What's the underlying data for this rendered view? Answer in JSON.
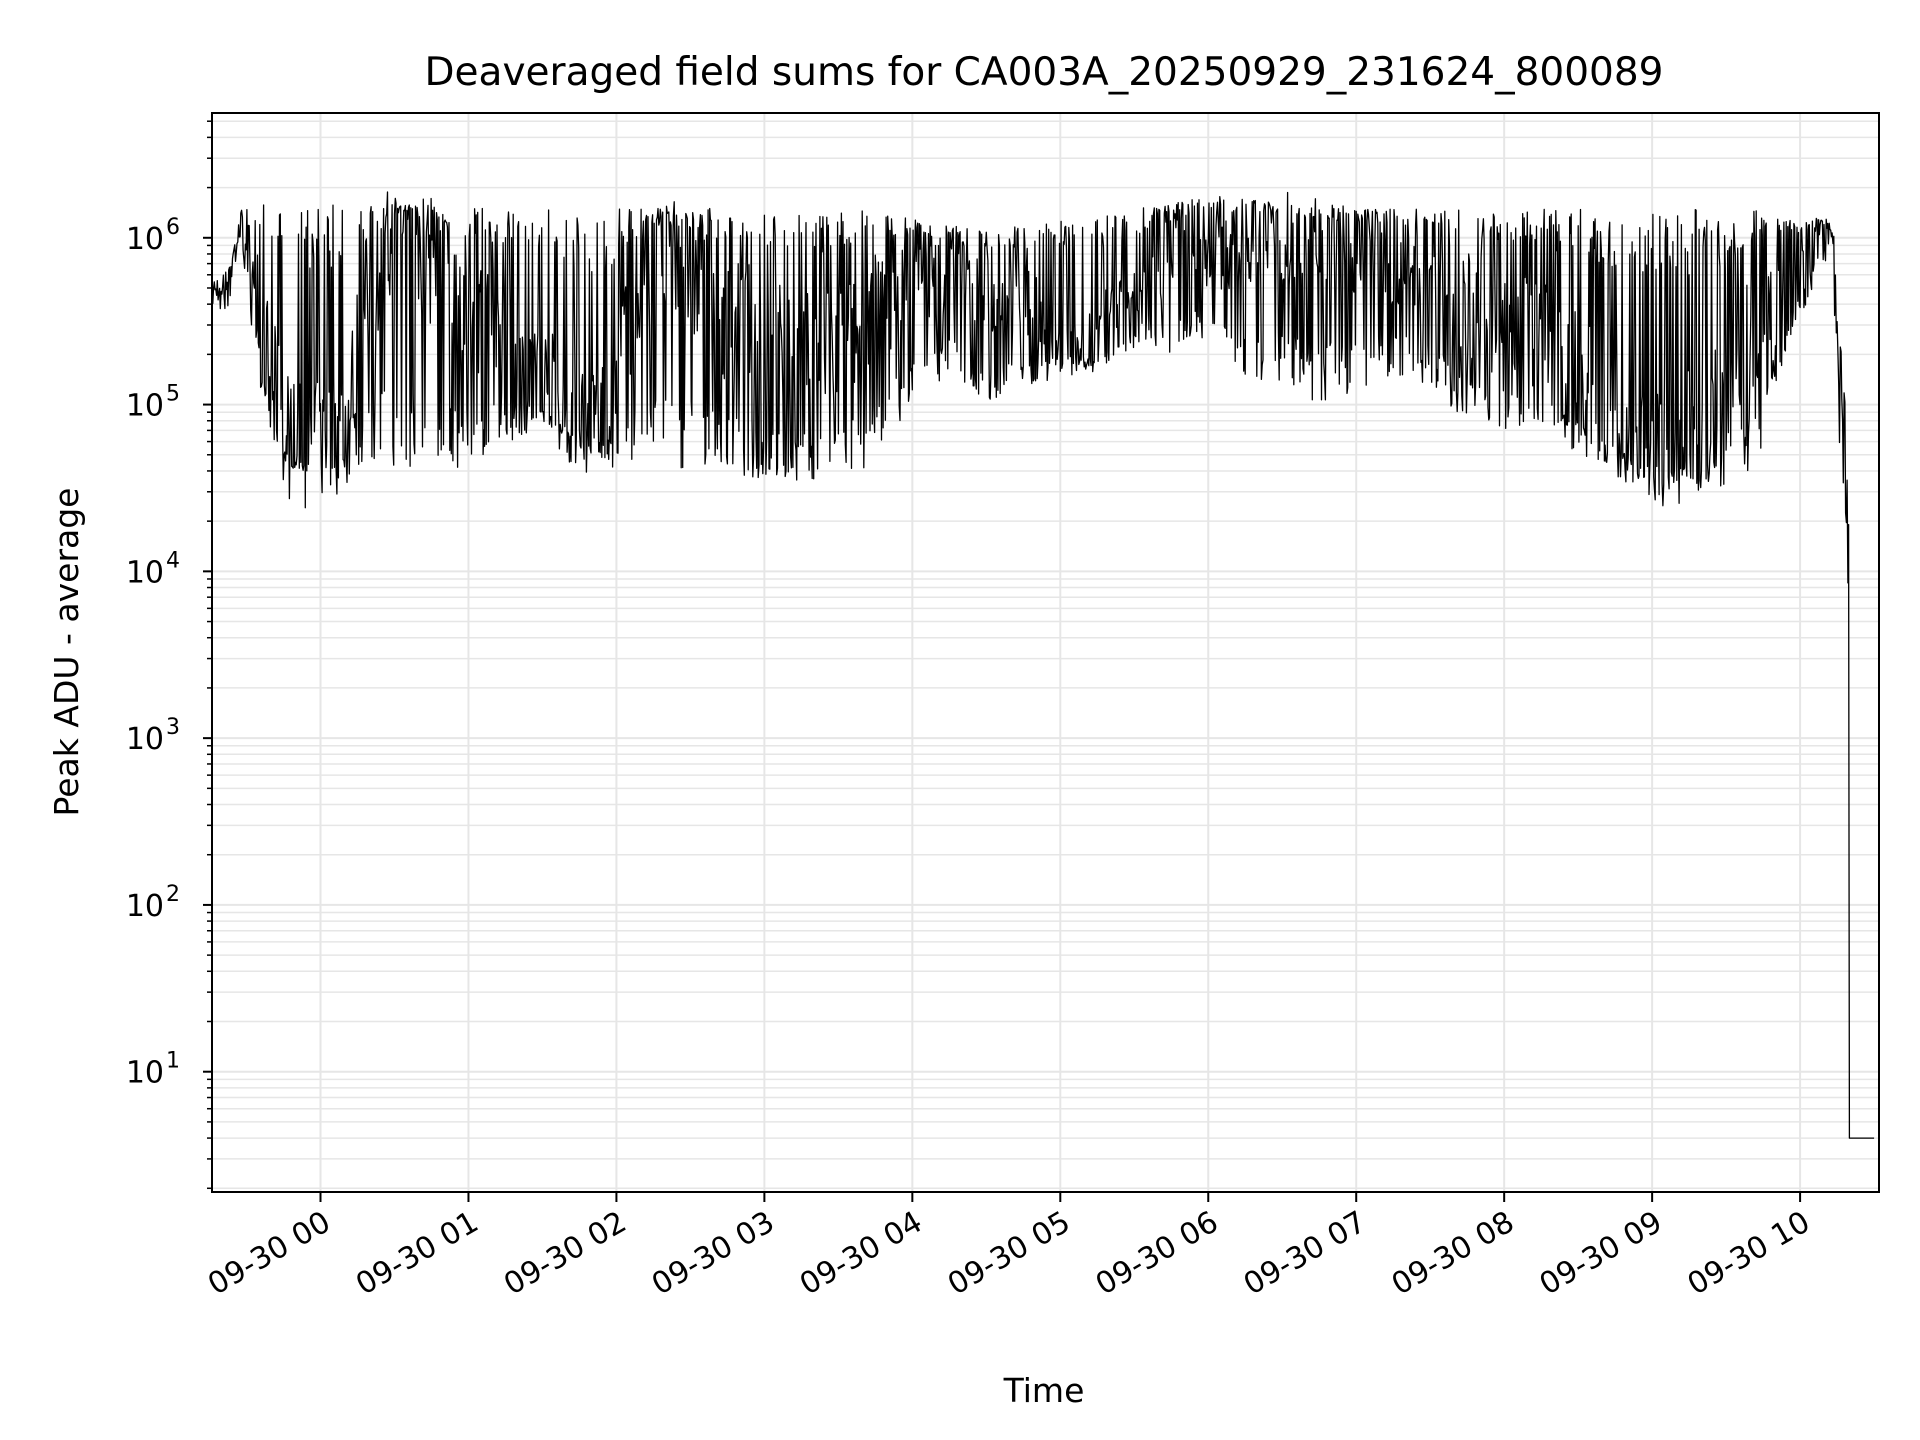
{
  "chart_data": {
    "type": "line",
    "title": "Deaveraged field sums for CA003A_20250929_231624_800089",
    "xlabel": "Time",
    "ylabel": "Peak ADU - average",
    "yscale": "log",
    "ylim": [
      1.9,
      5600000
    ],
    "xlim": [
      "2025-09-29 23:16",
      "2025-09-30 10:32"
    ],
    "grid": true,
    "grid_minor": true,
    "colors": {
      "line": "#000000",
      "grid": "#e6e6e6",
      "axes": "#000000"
    },
    "x_ticks": [
      {
        "value": "2025-09-30 00:00",
        "label": "09-30 00"
      },
      {
        "value": "2025-09-30 01:00",
        "label": "09-30 01"
      },
      {
        "value": "2025-09-30 02:00",
        "label": "09-30 02"
      },
      {
        "value": "2025-09-30 03:00",
        "label": "09-30 03"
      },
      {
        "value": "2025-09-30 04:00",
        "label": "09-30 04"
      },
      {
        "value": "2025-09-30 05:00",
        "label": "09-30 05"
      },
      {
        "value": "2025-09-30 06:00",
        "label": "09-30 06"
      },
      {
        "value": "2025-09-30 07:00",
        "label": "09-30 07"
      },
      {
        "value": "2025-09-30 08:00",
        "label": "09-30 08"
      },
      {
        "value": "2025-09-30 09:00",
        "label": "09-30 09"
      },
      {
        "value": "2025-09-30 10:00",
        "label": "09-30 10"
      }
    ],
    "y_ticks": [
      {
        "value": 10,
        "base": "10",
        "exp": "1"
      },
      {
        "value": 100,
        "base": "10",
        "exp": "2"
      },
      {
        "value": 1000,
        "base": "10",
        "exp": "3"
      },
      {
        "value": 10000,
        "base": "10",
        "exp": "4"
      },
      {
        "value": 100000,
        "base": "10",
        "exp": "5"
      },
      {
        "value": 1000000,
        "base": "10",
        "exp": "6"
      }
    ],
    "series": [
      {
        "x": [
          "2025-09-29 23:16",
          "2025-09-29 23:20",
          "2025-09-29 23:24",
          "2025-09-29 23:28",
          "2025-09-29 23:32",
          "2025-09-29 23:36",
          "2025-09-29 23:40",
          "2025-09-29 23:44",
          "2025-09-29 23:48",
          "2025-09-29 23:52",
          "2025-09-29 23:56",
          "2025-09-30 00:00",
          "2025-09-30 00:06",
          "2025-09-30 00:12",
          "2025-09-30 00:18",
          "2025-09-30 00:24",
          "2025-09-30 00:30",
          "2025-09-30 00:36",
          "2025-09-30 00:42",
          "2025-09-30 00:48",
          "2025-09-30 00:54",
          "2025-09-30 01:00",
          "2025-09-30 01:10",
          "2025-09-30 01:20",
          "2025-09-30 01:30",
          "2025-09-30 01:40",
          "2025-09-30 01:50",
          "2025-09-30 02:00",
          "2025-09-30 02:10",
          "2025-09-30 02:20",
          "2025-09-30 02:30",
          "2025-09-30 02:40",
          "2025-09-30 02:50",
          "2025-09-30 03:00",
          "2025-09-30 03:10",
          "2025-09-30 03:20",
          "2025-09-30 03:30",
          "2025-09-30 03:40",
          "2025-09-30 03:50",
          "2025-09-30 04:00",
          "2025-09-30 04:15",
          "2025-09-30 04:30",
          "2025-09-30 04:45",
          "2025-09-30 05:00",
          "2025-09-30 05:15",
          "2025-09-30 05:30",
          "2025-09-30 05:45",
          "2025-09-30 06:00",
          "2025-09-30 06:15",
          "2025-09-30 06:30",
          "2025-09-30 06:45",
          "2025-09-30 07:00",
          "2025-09-30 07:15",
          "2025-09-30 07:30",
          "2025-09-30 07:45",
          "2025-09-30 08:00",
          "2025-09-30 08:15",
          "2025-09-30 08:30",
          "2025-09-30 08:45",
          "2025-09-30 09:00",
          "2025-09-30 09:15",
          "2025-09-30 09:30",
          "2025-09-30 09:45",
          "2025-09-30 10:00",
          "2025-09-30 10:05",
          "2025-09-30 10:10",
          "2025-09-30 10:13",
          "2025-09-30 10:15",
          "2025-09-30 10:16",
          "2025-09-30 10:20",
          "2025-09-30 10:25",
          "2025-09-30 10:30"
        ],
        "y": [
          500000,
          450000,
          520000,
          1200000,
          800000,
          300000,
          150000,
          90000,
          60000,
          55000,
          50000,
          60000,
          70000,
          80000,
          400000,
          700000,
          900000,
          1000000,
          800000,
          600000,
          500000,
          400000,
          300000,
          200000,
          150000,
          100000,
          80000,
          120000,
          500000,
          700000,
          600000,
          400000,
          300000,
          250000,
          200000,
          180000,
          200000,
          300000,
          400000,
          500000,
          600000,
          500000,
          400000,
          300000,
          250000,
          400000,
          700000,
          800000,
          900000,
          1000000,
          900000,
          800000,
          700000,
          600000,
          400000,
          300000,
          250000,
          150000,
          90000,
          60000,
          70000,
          90000,
          400000,
          800000,
          1100000,
          1200000,
          900000,
          400000,
          100000,
          4,
          4,
          4
        ],
        "y_low": [
          400000,
          350000,
          400000,
          800000,
          300000,
          100000,
          60000,
          45000,
          42000,
          40000,
          40000,
          42000,
          40000,
          40000,
          45000,
          45000,
          42000,
          40000,
          38000,
          38000,
          40000,
          42000,
          50000,
          60000,
          80000,
          60000,
          50000,
          40000,
          40000,
          38000,
          35000,
          35000,
          38000,
          35000,
          35000,
          35000,
          38000,
          40000,
          60000,
          100000,
          150000,
          100000,
          120000,
          150000,
          150000,
          200000,
          200000,
          250000,
          150000,
          120000,
          100000,
          120000,
          150000,
          120000,
          80000,
          70000,
          65000,
          50000,
          40000,
          32000,
          30000,
          32000,
          40000,
          300000,
          500000,
          700000,
          400000,
          150000,
          50000,
          4,
          4,
          4
        ],
        "y_high": [
          550000,
          600000,
          700000,
          1500000,
          1700000,
          1600000,
          1600000,
          1600000,
          1600000,
          1600000,
          1600000,
          1600000,
          1600000,
          1600000,
          1600000,
          1600000,
          1600000,
          1600000,
          1600000,
          1500000,
          1500000,
          1500000,
          1500000,
          1400000,
          1500000,
          1500000,
          1400000,
          1500000,
          1500000,
          1500000,
          1500000,
          1500000,
          1500000,
          1500000,
          1500000,
          1500000,
          1500000,
          1500000,
          1400000,
          1300000,
          1200000,
          1100000,
          1200000,
          1300000,
          1400000,
          1500000,
          1600000,
          1800000,
          1700000,
          1600000,
          1500000,
          1500000,
          1500000,
          1500000,
          1500000,
          1500000,
          1500000,
          1500000,
          1500000,
          1500000,
          1500000,
          1500000,
          1500000,
          1200000,
          1300000,
          1300000,
          1100000,
          900000,
          300000,
          5,
          5,
          5
        ]
      }
    ]
  }
}
